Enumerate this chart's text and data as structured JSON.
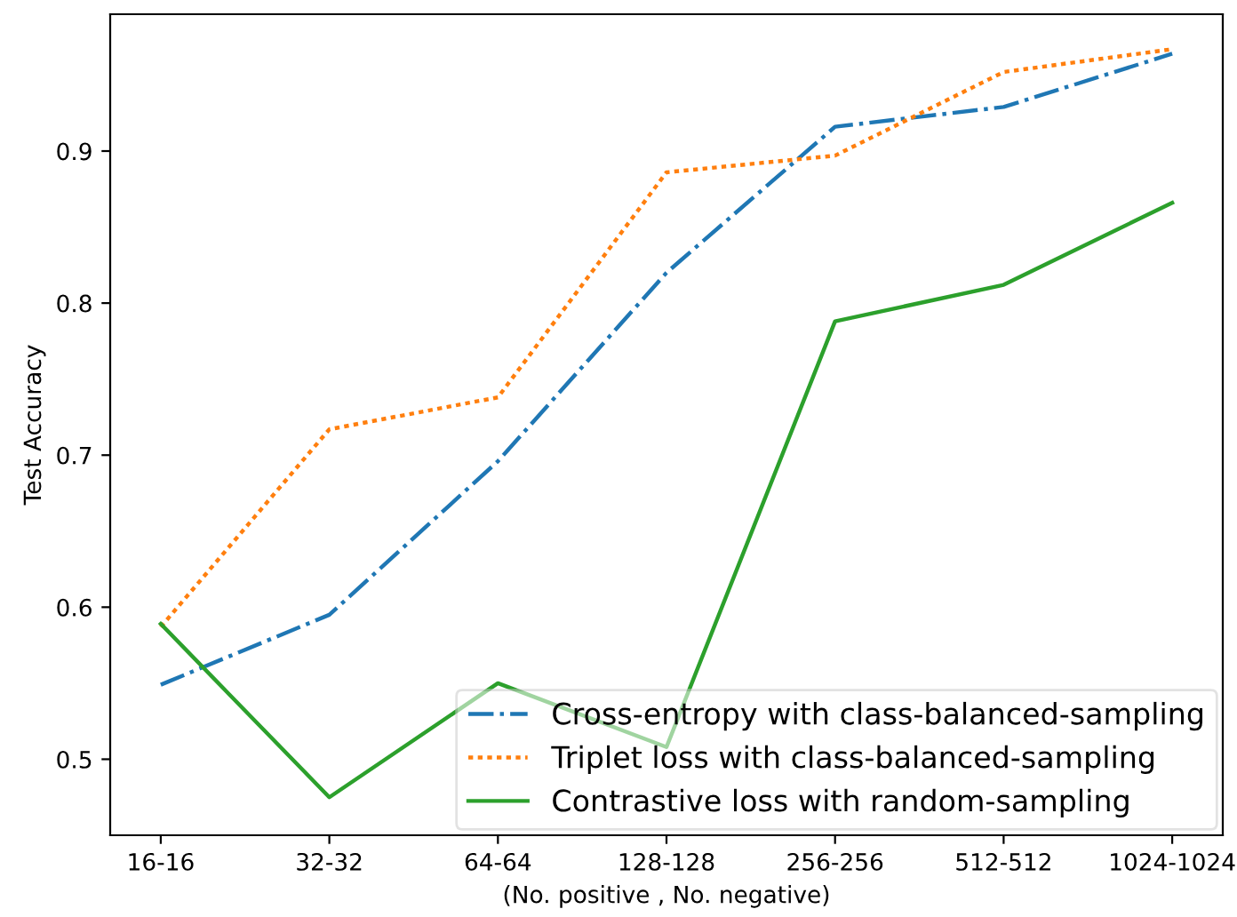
{
  "chart_data": {
    "type": "line",
    "xlabel": "(No. positive , No. negative)",
    "ylabel": "Test Accuracy",
    "categories": [
      "16-16",
      "32-32",
      "64-64",
      "128-128",
      "256-256",
      "512-512",
      "1024-1024"
    ],
    "series": [
      {
        "name": "Cross-entropy with class-balanced-sampling",
        "color": "#1f77b4",
        "line_style": "dashdot",
        "values": [
          0.549,
          0.595,
          0.696,
          0.82,
          0.916,
          0.929,
          0.964
        ]
      },
      {
        "name": "Triplet loss with class-balanced-sampling",
        "color": "#ff7f0e",
        "line_style": "dotted",
        "values": [
          0.587,
          0.717,
          0.738,
          0.886,
          0.897,
          0.952,
          0.967
        ]
      },
      {
        "name": "Contrastive loss with random-sampling",
        "color": "#2ca02c",
        "line_style": "solid",
        "values": [
          0.589,
          0.475,
          0.55,
          0.508,
          0.788,
          0.812,
          0.866
        ]
      }
    ],
    "ylim": [
      0.45,
      0.99
    ],
    "yticks": [
      0.5,
      0.6,
      0.7,
      0.8,
      0.9
    ],
    "grid": false,
    "legend": "bottom right",
    "marker": "none"
  }
}
